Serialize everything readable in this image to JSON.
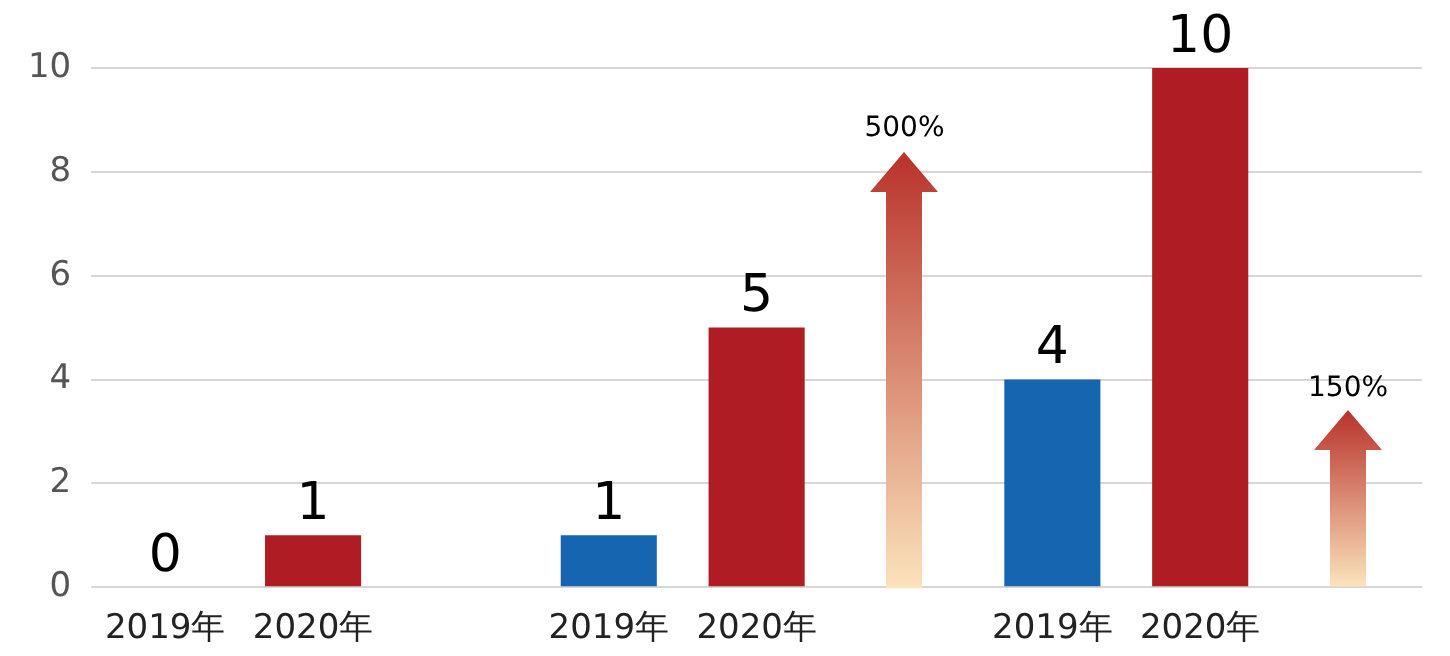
{
  "chart_data": {
    "type": "bar",
    "categories": [
      "2019年",
      "2020年",
      null,
      "2019年",
      "2020年",
      null,
      "2019年",
      "2020年",
      null
    ],
    "values": [
      0,
      1,
      null,
      1,
      5,
      null,
      4,
      10,
      null
    ],
    "colors": [
      "#1565b0",
      "#b01c24",
      "#1565b0",
      "#1565b0",
      "#b01c24",
      "#1565b0",
      "#1565b0",
      "#b01c24",
      "#1565b0"
    ],
    "ylim": [
      0,
      10
    ],
    "yticks": [
      0,
      2,
      4,
      6,
      8,
      10
    ],
    "grid": "y",
    "legend": false,
    "data_labels": true,
    "annotations": [
      "500%",
      "150%"
    ]
  }
}
